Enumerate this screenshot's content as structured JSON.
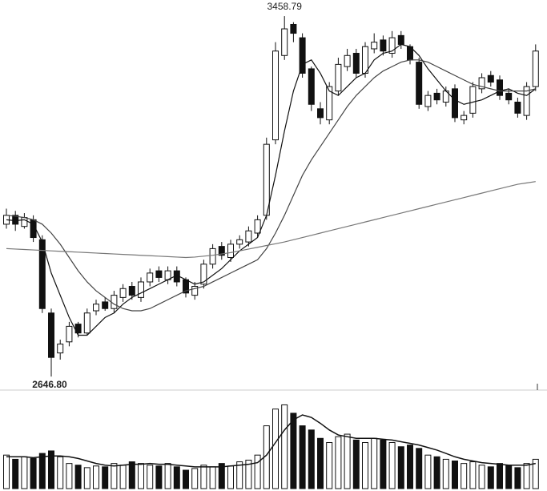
{
  "chart_data": {
    "type": "candlestick",
    "annotations": {
      "high_label": "3458.79",
      "low_label": "2646.80"
    },
    "ylim": [
      2620,
      3495
    ],
    "open": [
      2990,
      3010,
      2985,
      3000,
      2955,
      2790,
      2700,
      2725,
      2765,
      2745,
      2795,
      2815,
      2800,
      2825,
      2850,
      2825,
      2860,
      2885,
      2865,
      2885,
      2865,
      2830,
      2855,
      2900,
      2940,
      2915,
      2945,
      2950,
      2970,
      3010,
      3180,
      3370,
      3440,
      3410,
      3340,
      3250,
      3225,
      3290,
      3345,
      3375,
      3330,
      3385,
      3405,
      3375,
      3415,
      3390,
      3355,
      3255,
      3285,
      3265,
      3295,
      3225,
      3240,
      3295,
      3325,
      3315,
      3285,
      3265,
      3235,
      3300
    ],
    "high": [
      3025,
      3020,
      3015,
      3010,
      2965,
      2800,
      2730,
      2770,
      2770,
      2800,
      2820,
      2825,
      2840,
      2855,
      2860,
      2870,
      2890,
      2895,
      2895,
      2895,
      2870,
      2860,
      2910,
      2945,
      2950,
      2955,
      2965,
      2985,
      3010,
      3185,
      3400,
      3458.79,
      3445,
      3420,
      3345,
      3265,
      3310,
      3365,
      3385,
      3385,
      3400,
      3420,
      3415,
      3425,
      3425,
      3395,
      3365,
      3290,
      3295,
      3300,
      3305,
      3245,
      3310,
      3330,
      3335,
      3325,
      3295,
      3275,
      3310,
      3395
    ],
    "low": [
      2980,
      2975,
      2980,
      2950,
      2790,
      2646.8,
      2685,
      2715,
      2735,
      2740,
      2785,
      2795,
      2790,
      2815,
      2820,
      2815,
      2850,
      2860,
      2855,
      2850,
      2825,
      2820,
      2845,
      2890,
      2910,
      2905,
      2935,
      2940,
      2960,
      3000,
      3170,
      3360,
      3400,
      3320,
      3245,
      3215,
      3215,
      3280,
      3335,
      3320,
      3320,
      3375,
      3370,
      3365,
      3385,
      3350,
      3250,
      3245,
      3260,
      3255,
      3220,
      3215,
      3230,
      3285,
      3300,
      3270,
      3260,
      3230,
      3225,
      3290
    ],
    "close": [
      3010,
      2990,
      3005,
      2960,
      2800,
      2690,
      2720,
      2760,
      2745,
      2790,
      2810,
      2800,
      2830,
      2845,
      2830,
      2860,
      2880,
      2870,
      2885,
      2860,
      2835,
      2850,
      2900,
      2935,
      2920,
      2945,
      2955,
      2975,
      3000,
      3170,
      3380,
      3430,
      3420,
      3330,
      3260,
      3230,
      3300,
      3350,
      3370,
      3330,
      3390,
      3400,
      3380,
      3410,
      3395,
      3360,
      3260,
      3280,
      3270,
      3290,
      3230,
      3235,
      3300,
      3320,
      3310,
      3280,
      3270,
      3240,
      3300,
      3380
    ],
    "ma_lines": [
      {
        "color": "#111111",
        "values": [
          3000,
          2998,
          3000,
          2990,
          2950,
          2880,
          2830,
          2780,
          2740,
          2740,
          2760,
          2780,
          2790,
          2810,
          2825,
          2835,
          2845,
          2855,
          2865,
          2875,
          2865,
          2855,
          2860,
          2875,
          2890,
          2910,
          2930,
          2945,
          2960,
          3010,
          3100,
          3200,
          3290,
          3350,
          3360,
          3330,
          3290,
          3280,
          3300,
          3320,
          3330,
          3360,
          3375,
          3380,
          3395,
          3390,
          3370,
          3340,
          3315,
          3290,
          3270,
          3260,
          3265,
          3270,
          3280,
          3290,
          3295,
          3285,
          3280,
          3295
        ]
      },
      {
        "color": "#444444",
        "values": [
          3010,
          3008,
          3005,
          3000,
          2990,
          2970,
          2945,
          2915,
          2885,
          2860,
          2840,
          2825,
          2810,
          2800,
          2795,
          2795,
          2800,
          2810,
          2820,
          2830,
          2840,
          2845,
          2850,
          2860,
          2870,
          2880,
          2890,
          2900,
          2910,
          2935,
          2970,
          3010,
          3055,
          3100,
          3135,
          3165,
          3195,
          3225,
          3255,
          3280,
          3300,
          3320,
          3335,
          3345,
          3355,
          3360,
          3360,
          3355,
          3345,
          3335,
          3325,
          3315,
          3305,
          3300,
          3295,
          3290,
          3290,
          3290,
          3290,
          3295
        ]
      },
      {
        "color": "#777777",
        "values": [
          2935,
          2934,
          2933,
          2932,
          2931,
          2930,
          2929,
          2928,
          2927,
          2926,
          2925,
          2924,
          2923,
          2922,
          2921,
          2920,
          2919,
          2918,
          2917,
          2916,
          2915,
          2916,
          2918,
          2920,
          2923,
          2926,
          2930,
          2934,
          2938,
          2942,
          2946,
          2950,
          2955,
          2960,
          2965,
          2970,
          2975,
          2980,
          2985,
          2990,
          2995,
          3000,
          3005,
          3010,
          3015,
          3020,
          3025,
          3030,
          3035,
          3040,
          3045,
          3050,
          3055,
          3060,
          3065,
          3070,
          3075,
          3080,
          3083,
          3086
        ]
      }
    ],
    "vlim": [
      0,
      110
    ],
    "volume": [
      40,
      35,
      38,
      36,
      42,
      45,
      38,
      30,
      28,
      25,
      27,
      26,
      30,
      28,
      32,
      30,
      28,
      27,
      30,
      26,
      22,
      24,
      28,
      26,
      30,
      27,
      32,
      34,
      40,
      75,
      95,
      100,
      90,
      75,
      70,
      60,
      55,
      62,
      65,
      58,
      55,
      60,
      58,
      55,
      50,
      52,
      48,
      40,
      38,
      35,
      33,
      30,
      32,
      28,
      26,
      30,
      28,
      25,
      30,
      35
    ],
    "volume_ma": {
      "color": "#111111",
      "values": [
        38,
        38,
        38,
        37,
        38,
        39,
        39,
        38,
        36,
        33,
        30,
        28,
        27,
        28,
        29,
        29,
        30,
        29,
        29,
        28,
        27,
        26,
        26,
        26,
        26,
        27,
        28,
        29,
        31,
        40,
        55,
        70,
        82,
        88,
        85,
        78,
        70,
        64,
        62,
        60,
        60,
        60,
        59,
        58,
        56,
        54,
        52,
        49,
        46,
        42,
        38,
        35,
        33,
        31,
        30,
        29,
        28,
        28,
        28,
        30
      ]
    }
  }
}
